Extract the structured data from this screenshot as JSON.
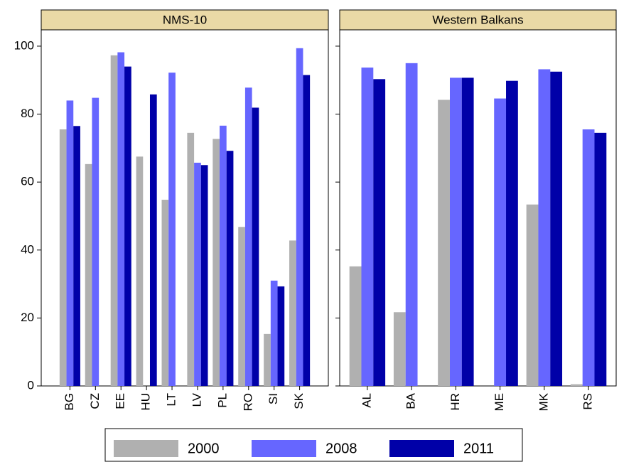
{
  "chart_data": {
    "type": "bar",
    "ylim": [
      0,
      104.8
    ],
    "yticks": [
      0,
      20,
      40,
      60,
      80,
      100
    ],
    "grid": false,
    "series": [
      {
        "name": "2000",
        "color": "#b0b0b0"
      },
      {
        "name": "2008",
        "color": "#6666ff"
      },
      {
        "name": "2011",
        "color": "#0000a8"
      }
    ],
    "panels": [
      {
        "title": "NMS-10",
        "categories": [
          "BG",
          "CZ",
          "EE",
          "HU",
          "LT",
          "LV",
          "PL",
          "RO",
          "SI",
          "SK"
        ],
        "series": [
          {
            "values": [
              75.5,
              65.3,
              97.3,
              67.5,
              54.8,
              74.5,
              72.7,
              46.8,
              15.3,
              42.8
            ]
          },
          {
            "values": [
              84,
              84.8,
              98.2,
              null,
              92.2,
              65.7,
              76.6,
              87.8,
              31,
              99.4
            ]
          },
          {
            "values": [
              76.5,
              null,
              94,
              85.8,
              null,
              65,
              69.2,
              81.9,
              29.3,
              91.5
            ]
          }
        ]
      },
      {
        "title": "Western Balkans",
        "categories": [
          "AL",
          "BA",
          "HR",
          "ME",
          "MK",
          "RS"
        ],
        "series": [
          {
            "values": [
              35.2,
              21.7,
              84.2,
              null,
              53.4,
              0.5
            ]
          },
          {
            "values": [
              93.7,
              95,
              90.7,
              84.6,
              93.2,
              75.5
            ]
          },
          {
            "values": [
              90.3,
              null,
              90.7,
              89.8,
              92.5,
              74.5
            ]
          }
        ]
      }
    ]
  }
}
